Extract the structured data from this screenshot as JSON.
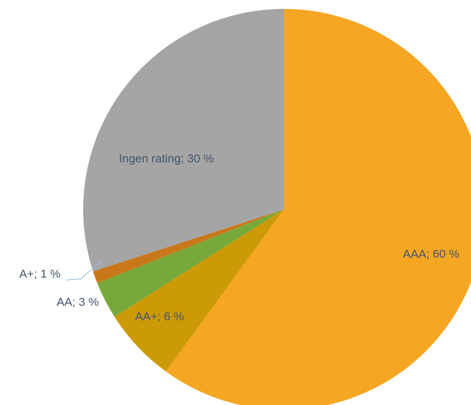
{
  "chart_data": {
    "type": "pie",
    "values": [
      60,
      6,
      3,
      1,
      30
    ],
    "value_labels": [
      "AAA; 60 %",
      "AA+; 6 %",
      "AA; 3 %",
      "A+; 1 %",
      "Ingen rating; 30 %"
    ],
    "colors": [
      "#f5a623",
      "#cc9a06",
      "#77a83a",
      "#c8781a",
      "#a5a5a5"
    ],
    "start_angle": 0,
    "direction": "clockwise"
  }
}
